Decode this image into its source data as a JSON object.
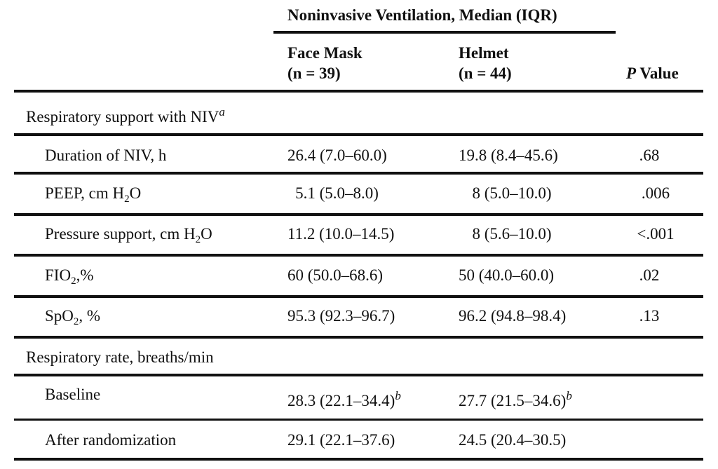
{
  "header": {
    "group_title": "Noninvasive Ventilation, Median (IQR)",
    "face_mask": {
      "name": "Face Mask",
      "n": "(n = 39)"
    },
    "helmet": {
      "name": "Helmet",
      "n": "(n = 44)"
    },
    "p_label_letter": "P",
    "p_label_rest": "Value"
  },
  "sections": {
    "support": {
      "label": "Respiratory support with NIV",
      "footnote": "a",
      "rows": {
        "duration": {
          "label": "Duration of NIV, h",
          "face": "26.4 (7.0–60.0)",
          "helmet": "19.8 (8.4–45.6)",
          "p": ".68"
        },
        "peep": {
          "label_pre": "PEEP, cm H",
          "label_sub": "2",
          "label_post": "O",
          "face": "5.1 (5.0–8.0)",
          "helmet": "8 (5.0–10.0)",
          "p": ".006"
        },
        "pressure": {
          "label_pre": "Pressure support, cm H",
          "label_sub": "2",
          "label_post": "O",
          "face": "11.2 (10.0–14.5)",
          "helmet": "8 (5.6–10.0)",
          "p": "<.001"
        },
        "fio2": {
          "label_pre": "FIO",
          "label_sub": "2",
          "label_post": ",%",
          "face": "60 (50.0–68.6)",
          "helmet": "50 (40.0–60.0)",
          "p": ".02"
        },
        "spo2": {
          "label_pre": "SpO",
          "label_sub": "2",
          "label_post": ", %",
          "face": "95.3 (92.3–96.7)",
          "helmet": "96.2 (94.8–98.4)",
          "p": ".13"
        }
      }
    },
    "rate": {
      "label": "Respiratory rate, breaths/min",
      "rows": {
        "baseline": {
          "label": "Baseline",
          "face": "28.3 (22.1–34.4)",
          "face_note": "b",
          "helmet": "27.7 (21.5–34.6)",
          "helmet_note": "b"
        },
        "after": {
          "label": "After randomization",
          "face": "29.1 (22.1–37.6)",
          "helmet": "24.5 (20.4–30.5)"
        }
      }
    }
  }
}
